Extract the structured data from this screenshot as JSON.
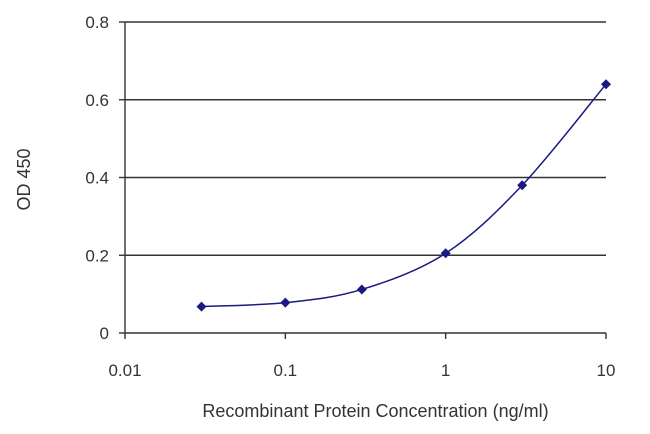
{
  "chart_data": {
    "type": "line",
    "title": "",
    "xlabel": "Recombinant Protein Concentration (ng/ml)",
    "ylabel": "OD 450",
    "xscale": "log",
    "xlim": [
      0.01,
      10
    ],
    "ylim": [
      0,
      0.8
    ],
    "xticks": [
      0.01,
      0.1,
      1,
      10
    ],
    "xtick_labels": [
      "0.01",
      "0.1",
      "1",
      "10"
    ],
    "yticks": [
      0,
      0.2,
      0.4,
      0.6,
      0.8
    ],
    "ytick_labels": [
      "0",
      "0.2",
      "0.4",
      "0.6",
      "0.8"
    ],
    "grid": "horizontal",
    "legend": "none",
    "series": [
      {
        "x": [
          0.03,
          0.1,
          0.3,
          1,
          3,
          10
        ],
        "y": [
          0.068,
          0.078,
          0.112,
          0.205,
          0.38,
          0.64
        ]
      }
    ],
    "colors": {
      "series": "#1a1a80",
      "axis": "#333333",
      "grid": "#333333"
    }
  }
}
